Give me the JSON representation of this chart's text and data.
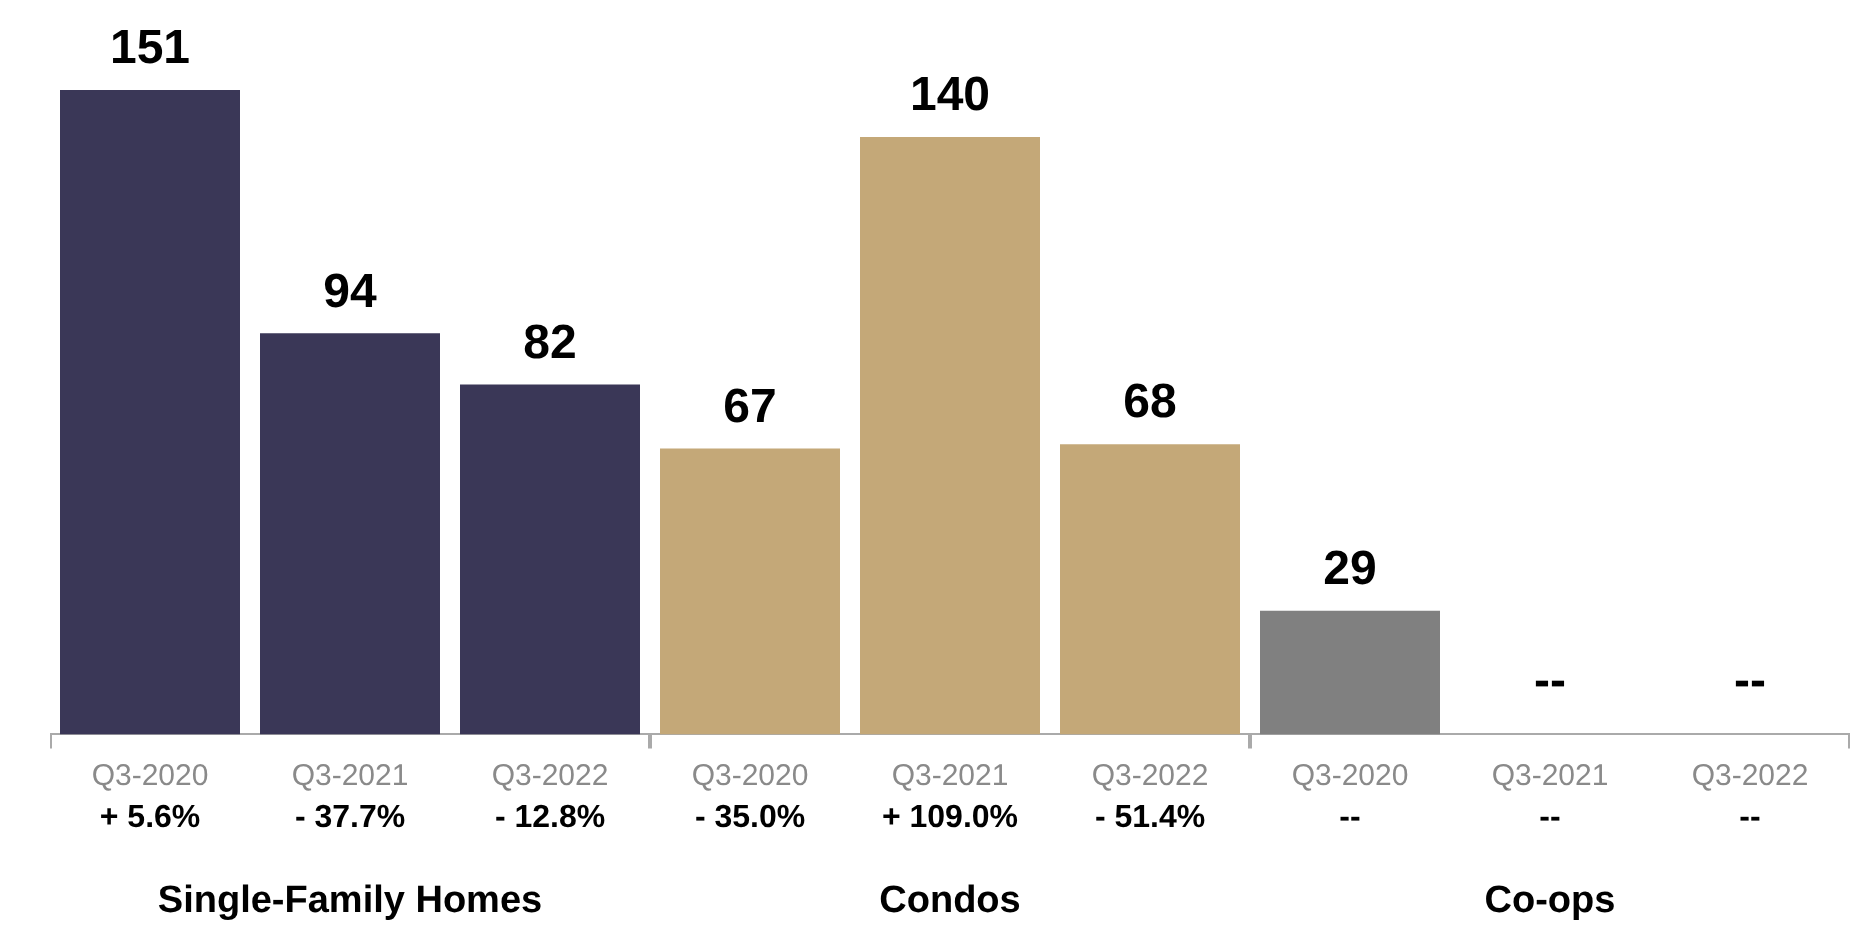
{
  "chart_data": [
    {
      "type": "bar",
      "xlabel": "Single-Family Homes",
      "categories": [
        "Q3-2020",
        "Q3-2021",
        "Q3-2022"
      ],
      "values": [
        151,
        94,
        82
      ],
      "color": "#3a3757",
      "data_labels": true,
      "annotations": [
        "+ 5.6%",
        "- 37.7%",
        "- 12.8%"
      ]
    },
    {
      "type": "bar",
      "xlabel": "Condos",
      "categories": [
        "Q3-2020",
        "Q3-2021",
        "Q3-2022"
      ],
      "values": [
        67,
        140,
        68
      ],
      "color": "#c4a878",
      "data_labels": true,
      "annotations": [
        "- 35.0%",
        "+ 109.0%",
        "- 51.4%"
      ]
    },
    {
      "type": "bar",
      "xlabel": "Co-ops",
      "categories": [
        "Q3-2020",
        "Q3-2021",
        "Q3-2022"
      ],
      "values": [
        29,
        null,
        null
      ],
      "color": "#808080",
      "value_labels": [
        "29",
        "--",
        "--"
      ],
      "annotations": [
        "--",
        "--",
        "--"
      ]
    }
  ]
}
